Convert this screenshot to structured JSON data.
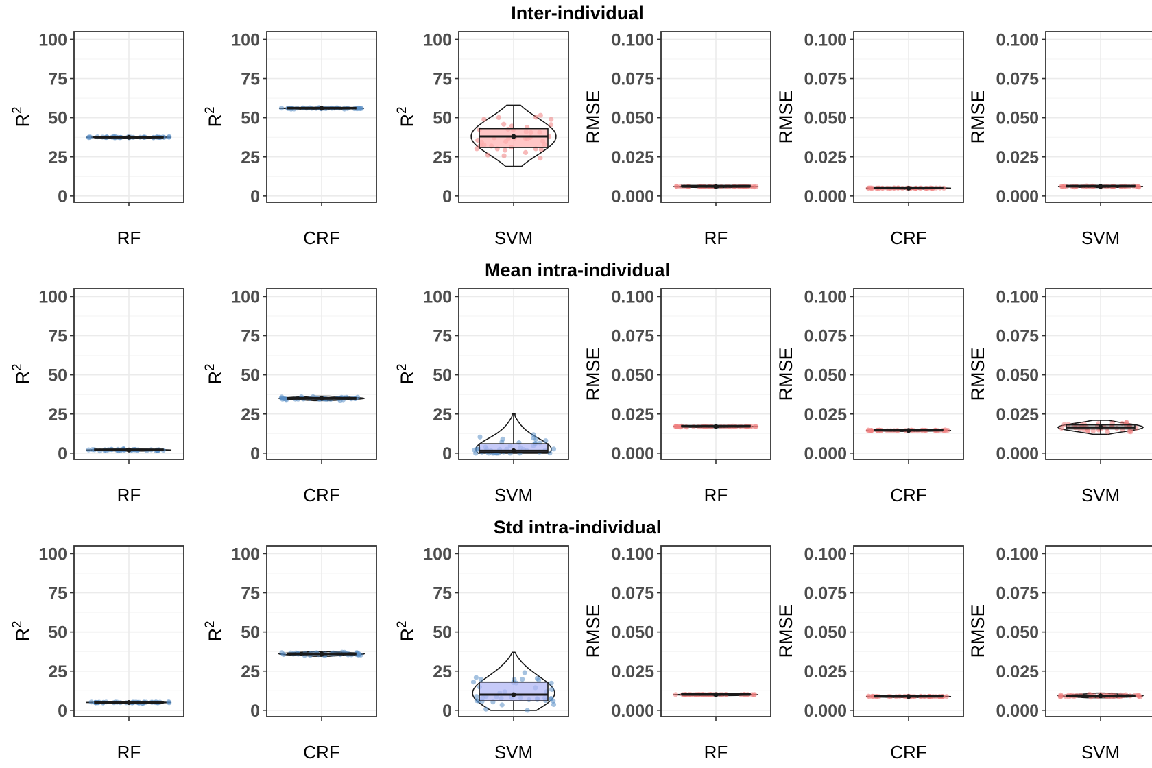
{
  "colors": {
    "point_r2": "#5b8fc7",
    "point_rmse": "#f08080",
    "box_fill_red": "#ffb3b3",
    "box_fill_blue": "#b3b8f5",
    "grid": "#ebebeb",
    "frame": "#333333"
  },
  "chart_data": [
    {
      "row": 0,
      "row_title": "Inter-individual",
      "type": "violin-box",
      "category": "RF",
      "ylabel": "R",
      "ylabel_sup": "2",
      "ylim": [
        -4,
        105
      ],
      "yticks": [
        0,
        25,
        50,
        75,
        100
      ],
      "yticklabels": [
        "0",
        "25",
        "50",
        "75",
        "100"
      ],
      "median": 37.5,
      "q1": 37.2,
      "q3": 37.8,
      "min": 36.8,
      "max": 38.2,
      "points_spread": 0.4,
      "point_color": "#5b8fc7",
      "box_fill": "none"
    },
    {
      "row": 0,
      "type": "violin-box",
      "category": "CRF",
      "ylabel": "R",
      "ylabel_sup": "2",
      "ylim": [
        -4,
        105
      ],
      "yticks": [
        0,
        25,
        50,
        75,
        100
      ],
      "yticklabels": [
        "0",
        "25",
        "50",
        "75",
        "100"
      ],
      "median": 56.0,
      "q1": 55.7,
      "q3": 56.3,
      "min": 55.3,
      "max": 56.8,
      "points_spread": 0.4,
      "point_color": "#5b8fc7",
      "box_fill": "none"
    },
    {
      "row": 0,
      "type": "violin-box",
      "category": "SVM",
      "ylabel": "R",
      "ylabel_sup": "2",
      "ylim": [
        -4,
        105
      ],
      "yticks": [
        0,
        25,
        50,
        75,
        100
      ],
      "yticklabels": [
        "0",
        "25",
        "50",
        "75",
        "100"
      ],
      "median": 38.0,
      "q1": 31.0,
      "q3": 43.0,
      "min": 19.0,
      "max": 58.0,
      "points_spread": 9.0,
      "point_color": "#f08080",
      "box_fill": "#ffb3b3"
    },
    {
      "row": 0,
      "type": "violin-box",
      "category": "RF",
      "ylabel": "RMSE",
      "ylim": [
        -0.004,
        0.105
      ],
      "yticks": [
        0,
        0.025,
        0.05,
        0.075,
        0.1
      ],
      "yticklabels": [
        "0.000",
        "0.025",
        "0.050",
        "0.075",
        "0.100"
      ],
      "median": 0.006,
      "q1": 0.0059,
      "q3": 0.0061,
      "min": 0.0057,
      "max": 0.0063,
      "points_spread": 0.0002,
      "point_color": "#f08080",
      "box_fill": "none"
    },
    {
      "row": 0,
      "type": "violin-box",
      "category": "CRF",
      "ylabel": "RMSE",
      "ylim": [
        -0.004,
        0.105
      ],
      "yticks": [
        0,
        0.025,
        0.05,
        0.075,
        0.1
      ],
      "yticklabels": [
        "0.000",
        "0.025",
        "0.050",
        "0.075",
        "0.100"
      ],
      "median": 0.005,
      "q1": 0.0049,
      "q3": 0.0051,
      "min": 0.0047,
      "max": 0.0053,
      "points_spread": 0.0002,
      "point_color": "#f08080",
      "box_fill": "none"
    },
    {
      "row": 0,
      "type": "violin-box",
      "category": "SVM",
      "ylabel": "RMSE",
      "ylim": [
        -0.004,
        0.105
      ],
      "yticks": [
        0,
        0.025,
        0.05,
        0.075,
        0.1
      ],
      "yticklabels": [
        "0.000",
        "0.025",
        "0.050",
        "0.075",
        "0.100"
      ],
      "median": 0.0061,
      "q1": 0.0059,
      "q3": 0.0063,
      "min": 0.0056,
      "max": 0.0066,
      "points_spread": 0.0003,
      "point_color": "#f08080",
      "box_fill": "none"
    },
    {
      "row": 1,
      "row_title": "Mean intra-individual",
      "type": "violin-box",
      "category": "RF",
      "ylabel": "R",
      "ylabel_sup": "2",
      "ylim": [
        -4,
        105
      ],
      "yticks": [
        0,
        25,
        50,
        75,
        100
      ],
      "yticklabels": [
        "0",
        "25",
        "50",
        "75",
        "100"
      ],
      "median": 2.0,
      "q1": 1.7,
      "q3": 2.3,
      "min": 1.2,
      "max": 3.0,
      "points_spread": 0.5,
      "point_color": "#5b8fc7",
      "box_fill": "none"
    },
    {
      "row": 1,
      "type": "violin-box",
      "category": "CRF",
      "ylabel": "R",
      "ylabel_sup": "2",
      "ylim": [
        -4,
        105
      ],
      "yticks": [
        0,
        25,
        50,
        75,
        100
      ],
      "yticklabels": [
        "0",
        "25",
        "50",
        "75",
        "100"
      ],
      "median": 35.0,
      "q1": 34.5,
      "q3": 35.5,
      "min": 33.5,
      "max": 36.5,
      "points_spread": 0.7,
      "point_color": "#5b8fc7",
      "box_fill": "none"
    },
    {
      "row": 1,
      "type": "violin-box",
      "category": "SVM",
      "ylabel": "R",
      "ylabel_sup": "2",
      "ylim": [
        -4,
        105
      ],
      "yticks": [
        0,
        25,
        50,
        75,
        100
      ],
      "yticklabels": [
        "0",
        "25",
        "50",
        "75",
        "100"
      ],
      "median": 1.5,
      "q1": 0.5,
      "q3": 6.0,
      "min": 0.0,
      "max": 25.0,
      "points_spread": 5.0,
      "point_color": "#5b8fc7",
      "box_fill": "#b3b8f5"
    },
    {
      "row": 1,
      "type": "violin-box",
      "category": "RF",
      "ylabel": "RMSE",
      "ylim": [
        -0.004,
        0.105
      ],
      "yticks": [
        0,
        0.025,
        0.05,
        0.075,
        0.1
      ],
      "yticklabels": [
        "0.000",
        "0.025",
        "0.050",
        "0.075",
        "0.100"
      ],
      "median": 0.017,
      "q1": 0.0168,
      "q3": 0.0172,
      "min": 0.0165,
      "max": 0.0175,
      "points_spread": 0.0003,
      "point_color": "#f08080",
      "box_fill": "none"
    },
    {
      "row": 1,
      "type": "violin-box",
      "category": "CRF",
      "ylabel": "RMSE",
      "ylim": [
        -0.004,
        0.105
      ],
      "yticks": [
        0,
        0.025,
        0.05,
        0.075,
        0.1
      ],
      "yticklabels": [
        "0.000",
        "0.025",
        "0.050",
        "0.075",
        "0.100"
      ],
      "median": 0.0145,
      "q1": 0.0143,
      "q3": 0.0147,
      "min": 0.014,
      "max": 0.015,
      "points_spread": 0.0003,
      "point_color": "#f08080",
      "box_fill": "none"
    },
    {
      "row": 1,
      "type": "violin-box",
      "category": "SVM",
      "ylabel": "RMSE",
      "ylim": [
        -0.004,
        0.105
      ],
      "yticks": [
        0,
        0.025,
        0.05,
        0.075,
        0.1
      ],
      "yticklabels": [
        "0.000",
        "0.025",
        "0.050",
        "0.075",
        "0.100"
      ],
      "median": 0.0165,
      "q1": 0.0155,
      "q3": 0.018,
      "min": 0.012,
      "max": 0.021,
      "points_spread": 0.002,
      "point_color": "#f08080",
      "box_fill": "none"
    },
    {
      "row": 2,
      "row_title": "Std intra-individual",
      "type": "violin-box",
      "category": "RF",
      "ylabel": "R",
      "ylabel_sup": "2",
      "ylim": [
        -4,
        105
      ],
      "yticks": [
        0,
        25,
        50,
        75,
        100
      ],
      "yticklabels": [
        "0",
        "25",
        "50",
        "75",
        "100"
      ],
      "median": 5.0,
      "q1": 4.7,
      "q3": 5.3,
      "min": 4.2,
      "max": 5.8,
      "points_spread": 0.5,
      "point_color": "#5b8fc7",
      "box_fill": "none"
    },
    {
      "row": 2,
      "type": "violin-box",
      "category": "CRF",
      "ylabel": "R",
      "ylabel_sup": "2",
      "ylim": [
        -4,
        105
      ],
      "yticks": [
        0,
        25,
        50,
        75,
        100
      ],
      "yticklabels": [
        "0",
        "25",
        "50",
        "75",
        "100"
      ],
      "median": 36.0,
      "q1": 35.5,
      "q3": 36.5,
      "min": 34.5,
      "max": 37.5,
      "points_spread": 0.7,
      "point_color": "#5b8fc7",
      "box_fill": "none"
    },
    {
      "row": 2,
      "type": "violin-box",
      "category": "SVM",
      "ylabel": "R",
      "ylabel_sup": "2",
      "ylim": [
        -4,
        105
      ],
      "yticks": [
        0,
        25,
        50,
        75,
        100
      ],
      "yticklabels": [
        "0",
        "25",
        "50",
        "75",
        "100"
      ],
      "median": 10.0,
      "q1": 6.0,
      "q3": 18.0,
      "min": 0.0,
      "max": 37.0,
      "points_spread": 8.0,
      "point_color": "#5b8fc7",
      "box_fill": "#b3b8f5"
    },
    {
      "row": 2,
      "type": "violin-box",
      "category": "RF",
      "ylabel": "RMSE",
      "ylim": [
        -0.004,
        0.105
      ],
      "yticks": [
        0,
        0.025,
        0.05,
        0.075,
        0.1
      ],
      "yticklabels": [
        "0.000",
        "0.025",
        "0.050",
        "0.075",
        "0.100"
      ],
      "median": 0.01,
      "q1": 0.0099,
      "q3": 0.0101,
      "min": 0.0097,
      "max": 0.0103,
      "points_spread": 0.0002,
      "point_color": "#f08080",
      "box_fill": "none"
    },
    {
      "row": 2,
      "type": "violin-box",
      "category": "CRF",
      "ylabel": "RMSE",
      "ylim": [
        -0.004,
        0.105
      ],
      "yticks": [
        0,
        0.025,
        0.05,
        0.075,
        0.1
      ],
      "yticklabels": [
        "0.000",
        "0.025",
        "0.050",
        "0.075",
        "0.100"
      ],
      "median": 0.0088,
      "q1": 0.0087,
      "q3": 0.0089,
      "min": 0.0085,
      "max": 0.0091,
      "points_spread": 0.0002,
      "point_color": "#f08080",
      "box_fill": "none"
    },
    {
      "row": 2,
      "type": "violin-box",
      "category": "SVM",
      "ylabel": "RMSE",
      "ylim": [
        -0.004,
        0.105
      ],
      "yticks": [
        0,
        0.025,
        0.05,
        0.075,
        0.1
      ],
      "yticklabels": [
        "0.000",
        "0.025",
        "0.050",
        "0.075",
        "0.100"
      ],
      "median": 0.0092,
      "q1": 0.0088,
      "q3": 0.0096,
      "min": 0.008,
      "max": 0.011,
      "points_spread": 0.001,
      "point_color": "#f08080",
      "box_fill": "none"
    }
  ]
}
